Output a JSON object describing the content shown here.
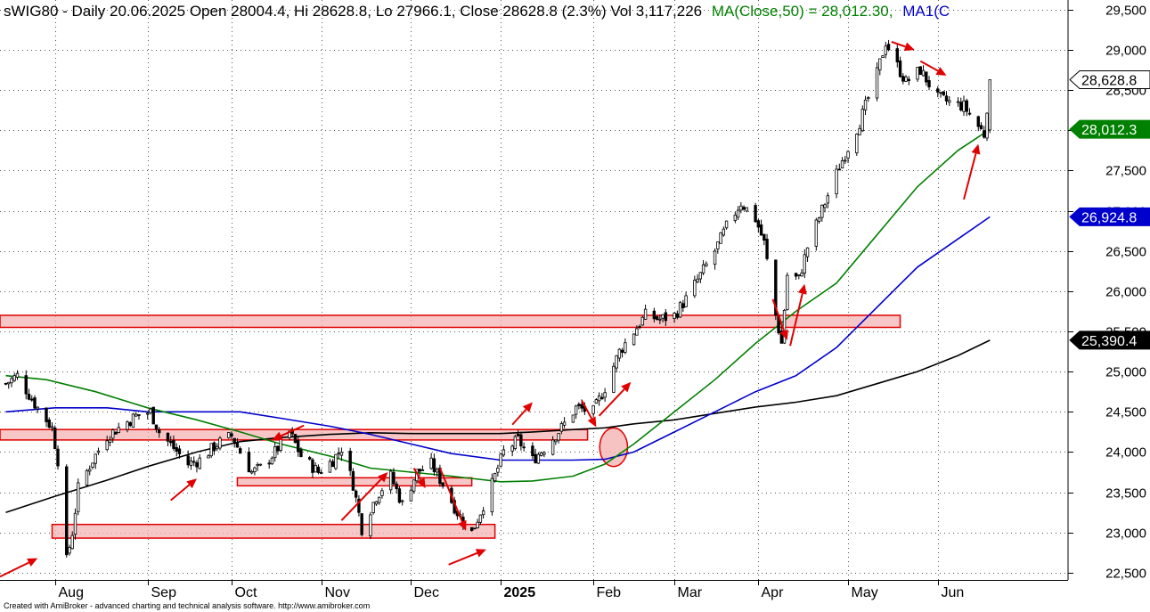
{
  "chart_data": {
    "type": "candlestick",
    "ticker": "sWIG80",
    "title": "sWIG80 - Daily 20.06.2025 Open 28004.4, Hi 28628.8, Lo 27966.1, Close 28628.8 (2.3%) Vol 3,117,226",
    "ma50_label": "MA(Close,50) = 28,012.30,",
    "ma1_label": "MA1(C",
    "colors": {
      "ma50": "#008000",
      "ma100": "#0000cc",
      "ma200": "#000000",
      "annotation": "#e00000",
      "zone_fill": "#f4b3b3"
    },
    "y_ticks": [
      22500,
      23000,
      23500,
      24000,
      24500,
      25000,
      25500,
      26000,
      26500,
      27000,
      27500,
      28000,
      28500,
      29000,
      29500
    ],
    "y_tick_labels": [
      "22,500",
      "23,000",
      "23,500",
      "24,000",
      "24,500",
      "25,000",
      "25,500",
      "26,000",
      "26,500",
      "27,000",
      "27,500",
      "28,000",
      "28,500",
      "29,000",
      "29,500"
    ],
    "ylim": [
      22410,
      29620
    ],
    "months": [
      {
        "label": "Aug",
        "date": "2024-08-01"
      },
      {
        "label": "Sep",
        "date": "2024-09-02"
      },
      {
        "label": "Oct",
        "date": "2024-10-01"
      },
      {
        "label": "Nov",
        "date": "2024-11-01"
      },
      {
        "label": "Dec",
        "date": "2024-12-02"
      },
      {
        "label": "2025",
        "date": "2025-01-02"
      },
      {
        "label": "Feb",
        "date": "2025-02-03"
      },
      {
        "label": "Mar",
        "date": "2025-03-03"
      },
      {
        "label": "Apr",
        "date": "2025-04-01"
      },
      {
        "label": "May",
        "date": "2025-05-02"
      },
      {
        "label": "Jun",
        "date": "2025-06-02"
      }
    ],
    "xlim": [
      "2024-07-13",
      "2025-07-17"
    ],
    "price_path": [
      [
        "2024-07-15",
        24850
      ],
      [
        "2024-07-19",
        24950
      ],
      [
        "2024-07-25",
        24600
      ],
      [
        "2024-07-31",
        24300
      ],
      [
        "2024-08-02",
        23900
      ],
      [
        "2024-08-05",
        22650
      ],
      [
        "2024-08-07",
        23000
      ],
      [
        "2024-08-09",
        23550
      ],
      [
        "2024-08-14",
        23900
      ],
      [
        "2024-08-19",
        24200
      ],
      [
        "2024-08-23",
        24300
      ],
      [
        "2024-08-29",
        24450
      ],
      [
        "2024-09-03",
        24500
      ],
      [
        "2024-09-06",
        24250
      ],
      [
        "2024-09-11",
        24050
      ],
      [
        "2024-09-16",
        23850
      ],
      [
        "2024-09-20",
        23900
      ],
      [
        "2024-09-26",
        24100
      ],
      [
        "2024-10-01",
        24200
      ],
      [
        "2024-10-04",
        24000
      ],
      [
        "2024-10-08",
        23750
      ],
      [
        "2024-10-11",
        23800
      ],
      [
        "2024-10-16",
        24000
      ],
      [
        "2024-10-21",
        24250
      ],
      [
        "2024-10-25",
        23950
      ],
      [
        "2024-10-31",
        23750
      ],
      [
        "2024-11-05",
        23900
      ],
      [
        "2024-11-08",
        24050
      ],
      [
        "2024-11-12",
        23600
      ],
      [
        "2024-11-15",
        23050
      ],
      [
        "2024-11-20",
        23450
      ],
      [
        "2024-11-25",
        23700
      ],
      [
        "2024-11-29",
        23350
      ],
      [
        "2024-12-04",
        23750
      ],
      [
        "2024-12-09",
        23850
      ],
      [
        "2024-12-13",
        23600
      ],
      [
        "2024-12-18",
        23250
      ],
      [
        "2024-12-23",
        23000
      ],
      [
        "2024-12-30",
        23600
      ],
      [
        "2025-01-03",
        24000
      ],
      [
        "2025-01-08",
        24150
      ],
      [
        "2025-01-13",
        23900
      ],
      [
        "2025-01-17",
        24050
      ],
      [
        "2025-01-23",
        24300
      ],
      [
        "2025-01-28",
        24550
      ],
      [
        "2025-02-03",
        24500
      ],
      [
        "2025-02-07",
        24800
      ],
      [
        "2025-02-12",
        25250
      ],
      [
        "2025-02-17",
        25500
      ],
      [
        "2025-02-21",
        25700
      ],
      [
        "2025-02-26",
        25650
      ],
      [
        "2025-03-03",
        25700
      ],
      [
        "2025-03-07",
        25900
      ],
      [
        "2025-03-12",
        26200
      ],
      [
        "2025-03-17",
        26500
      ],
      [
        "2025-03-21",
        26800
      ],
      [
        "2025-03-26",
        27100
      ],
      [
        "2025-03-31",
        26900
      ],
      [
        "2025-04-03",
        26600
      ],
      [
        "2025-04-07",
        25700
      ],
      [
        "2025-04-09",
        25350
      ],
      [
        "2025-04-11",
        26200
      ],
      [
        "2025-04-15",
        26150
      ],
      [
        "2025-04-18",
        26550
      ],
      [
        "2025-04-24",
        27100
      ],
      [
        "2025-04-29",
        27550
      ],
      [
        "2025-05-06",
        28100
      ],
      [
        "2025-05-12",
        28700
      ],
      [
        "2025-05-15",
        29100
      ],
      [
        "2025-05-19",
        28800
      ],
      [
        "2025-05-22",
        28600
      ],
      [
        "2025-05-27",
        28750
      ],
      [
        "2025-06-02",
        28400
      ],
      [
        "2025-06-06",
        28350
      ],
      [
        "2025-06-11",
        28300
      ],
      [
        "2025-06-16",
        28050
      ],
      [
        "2025-06-18",
        27950
      ],
      [
        "2025-06-20",
        28628.8
      ]
    ],
    "ma50_path": [
      [
        "2024-07-15",
        24950
      ],
      [
        "2024-07-29",
        24900
      ],
      [
        "2024-08-15",
        24750
      ],
      [
        "2024-09-02",
        24550
      ],
      [
        "2024-09-19",
        24400
      ],
      [
        "2024-10-04",
        24250
      ],
      [
        "2024-10-18",
        24100
      ],
      [
        "2024-11-04",
        23950
      ],
      [
        "2024-11-18",
        23800
      ],
      [
        "2024-12-02",
        23750
      ],
      [
        "2024-12-16",
        23700
      ],
      [
        "2025-01-02",
        23630
      ],
      [
        "2025-01-13",
        23640
      ],
      [
        "2025-01-27",
        23700
      ],
      [
        "2025-02-07",
        23850
      ],
      [
        "2025-02-17",
        24100
      ],
      [
        "2025-03-03",
        24500
      ],
      [
        "2025-03-17",
        24900
      ],
      [
        "2025-03-31",
        25350
      ],
      [
        "2025-04-14",
        25750
      ],
      [
        "2025-04-28",
        26100
      ],
      [
        "2025-05-12",
        26700
      ],
      [
        "2025-05-26",
        27300
      ],
      [
        "2025-06-09",
        27750
      ],
      [
        "2025-06-20",
        28012.3
      ]
    ],
    "ma100_path": [
      [
        "2024-07-15",
        24500
      ],
      [
        "2024-08-01",
        24550
      ],
      [
        "2024-08-19",
        24550
      ],
      [
        "2024-09-02",
        24500
      ],
      [
        "2024-09-19",
        24500
      ],
      [
        "2024-10-04",
        24500
      ],
      [
        "2024-10-18",
        24420
      ],
      [
        "2024-11-04",
        24320
      ],
      [
        "2024-11-18",
        24220
      ],
      [
        "2024-12-02",
        24100
      ],
      [
        "2024-12-16",
        23980
      ],
      [
        "2025-01-02",
        23900
      ],
      [
        "2025-01-13",
        23900
      ],
      [
        "2025-01-27",
        23900
      ],
      [
        "2025-02-07",
        23910
      ],
      [
        "2025-02-17",
        24000
      ],
      [
        "2025-03-03",
        24250
      ],
      [
        "2025-03-17",
        24500
      ],
      [
        "2025-03-31",
        24750
      ],
      [
        "2025-04-14",
        24950
      ],
      [
        "2025-04-28",
        25300
      ],
      [
        "2025-05-12",
        25800
      ],
      [
        "2025-05-26",
        26300
      ],
      [
        "2025-06-09",
        26650
      ],
      [
        "2025-06-20",
        26924.8
      ]
    ],
    "ma200_path": [
      [
        "2024-07-15",
        23250
      ],
      [
        "2024-08-01",
        23450
      ],
      [
        "2024-08-19",
        23650
      ],
      [
        "2024-09-02",
        23820
      ],
      [
        "2024-09-19",
        24000
      ],
      [
        "2024-10-04",
        24130
      ],
      [
        "2024-10-18",
        24180
      ],
      [
        "2024-11-04",
        24220
      ],
      [
        "2024-11-18",
        24240
      ],
      [
        "2024-12-02",
        24230
      ],
      [
        "2024-12-16",
        24230
      ],
      [
        "2025-01-02",
        24230
      ],
      [
        "2025-01-13",
        24250
      ],
      [
        "2025-01-27",
        24280
      ],
      [
        "2025-02-07",
        24300
      ],
      [
        "2025-02-17",
        24350
      ],
      [
        "2025-03-03",
        24400
      ],
      [
        "2025-03-17",
        24480
      ],
      [
        "2025-03-31",
        24560
      ],
      [
        "2025-04-14",
        24620
      ],
      [
        "2025-04-28",
        24700
      ],
      [
        "2025-05-12",
        24850
      ],
      [
        "2025-05-26",
        25000
      ],
      [
        "2025-06-09",
        25200
      ],
      [
        "2025-06-20",
        25390.4
      ]
    ],
    "right_tags": [
      {
        "label": "28,628.8",
        "value": 28628.8,
        "bg": "#ffffff",
        "fg": "#000000",
        "border": "#000000"
      },
      {
        "label": "28,012.3",
        "value": 28012.3,
        "bg": "#008000",
        "fg": "#ffffff",
        "border": "#008000"
      },
      {
        "label": "26,924.8",
        "value": 26924.8,
        "bg": "#0000cc",
        "fg": "#ffffff",
        "border": "#0000cc"
      },
      {
        "label": "25,390.4",
        "value": 25390.4,
        "bg": "#000000",
        "fg": "#ffffff",
        "border": "#000000"
      }
    ],
    "zones": [
      {
        "start": "2024-07-13",
        "end": "2025-05-20",
        "low": 25550,
        "high": 25700
      },
      {
        "start": "2024-07-13",
        "end": "2025-02-01",
        "low": 24150,
        "high": 24280
      },
      {
        "start": "2024-10-03",
        "end": "2024-12-23",
        "low": 23580,
        "high": 23680
      },
      {
        "start": "2024-07-31",
        "end": "2024-12-31",
        "low": 22930,
        "high": 23100
      }
    ],
    "ellipse": {
      "center_date": "2025-02-10",
      "center_value": 24060,
      "half_width_days": 4.8,
      "half_height_value": 240
    },
    "arrows": [
      [
        [
          "2024-07-13",
          22450
        ],
        [
          "2024-07-26",
          22680
        ]
      ],
      [
        [
          "2024-09-10",
          23400
        ],
        [
          "2024-09-19",
          23670
        ]
      ],
      [
        [
          "2024-10-26",
          24330
        ],
        [
          "2024-10-15",
          24150
        ]
      ],
      [
        [
          "2024-11-08",
          23150
        ],
        [
          "2024-11-24",
          23750
        ]
      ],
      [
        [
          "2024-12-03",
          23800
        ],
        [
          "2024-12-07",
          23550
        ]
      ],
      [
        [
          "2024-12-12",
          23800
        ],
        [
          "2024-12-21",
          23020
        ]
      ],
      [
        [
          "2024-12-15",
          22600
        ],
        [
          "2024-12-28",
          22790
        ]
      ],
      [
        [
          "2025-01-06",
          24340
        ],
        [
          "2025-01-13",
          24620
        ]
      ],
      [
        [
          "2025-01-30",
          24640
        ],
        [
          "2025-02-04",
          24310
        ]
      ],
      [
        [
          "2025-02-05",
          24450
        ],
        [
          "2025-02-16",
          24870
        ]
      ],
      [
        [
          "2025-04-06",
          25900
        ],
        [
          "2025-04-11",
          25390
        ]
      ],
      [
        [
          "2025-04-12",
          25320
        ],
        [
          "2025-04-17",
          26090
        ]
      ],
      [
        [
          "2025-05-17",
          29100
        ],
        [
          "2025-05-25",
          29000
        ]
      ],
      [
        [
          "2025-05-27",
          28860
        ],
        [
          "2025-06-05",
          28680
        ]
      ],
      [
        [
          "2025-06-11",
          27140
        ],
        [
          "2025-06-16",
          27830
        ]
      ]
    ]
  },
  "footer": {
    "credit": "Created with AmiBroker - advanced charting and technical analysis software. http://www.amibroker.com"
  }
}
